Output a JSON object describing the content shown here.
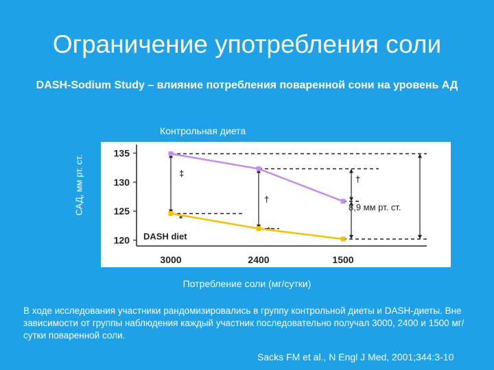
{
  "slide": {
    "title": "Ограничение употребления соли",
    "subtitle": "DASH-Sodium Study – влияние потребления поваренной сони на уровень АД",
    "series_label": "Контрольная диета",
    "body_text": "В ходе исследования участники рандомизировались в группу контрольной диеты и DASH-диеты. Вне зависимости от группы наблюдения каждый участник последовательно получал 3000, 2400 и 1500 мг/сутки поваренной соли.",
    "citation": "Sacks FM et al., N Engl J Med, 2001;344:3-10",
    "background_color": "#1ea1e6"
  },
  "chart_data": {
    "type": "line",
    "title": "",
    "xlabel": "Потребление соли (мг/сутки)",
    "ylabel": "САД, мм рт. ст.",
    "categories": [
      "3000",
      "2400",
      "1500"
    ],
    "yticks": [
      "135",
      "130",
      "125",
      "120"
    ],
    "ylim": [
      119,
      136
    ],
    "series": [
      {
        "name": "",
        "color": "#c48ee8",
        "values": [
          134.9,
          132.3,
          126.7
        ]
      },
      {
        "name": "DASH diet",
        "color": "#f5c200",
        "values": [
          124.6,
          122.0,
          120.2
        ]
      }
    ],
    "annotation": "8,9 мм рт. ст.",
    "significance_marks": [
      {
        "category": "3000",
        "symbol": "‡"
      },
      {
        "category": "2400",
        "symbol": "†"
      },
      {
        "category": "1500",
        "symbol": "†"
      },
      {
        "category": "3000",
        "symbol": "*"
      },
      {
        "category": "2400",
        "symbol": "*"
      }
    ],
    "grid": false
  }
}
